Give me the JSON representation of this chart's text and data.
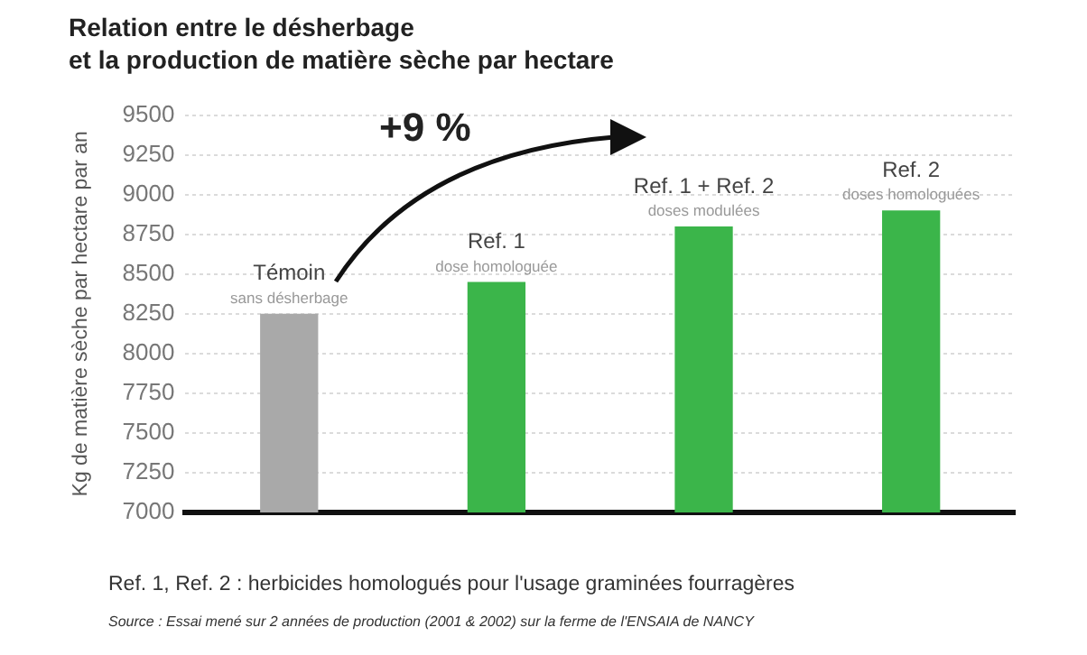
{
  "chart_data": {
    "type": "bar",
    "title": "Relation entre le désherbage\net la production de matière sèche par hectare",
    "ylabel": "Kg de matière sèche par hectare par an",
    "categories": [
      "Témoin",
      "Ref. 1",
      "Ref. 1 + Ref. 2",
      "Ref. 2"
    ],
    "values": [
      8250,
      8450,
      8800,
      8900
    ],
    "colors": [
      "#a9a9a9",
      "#3bb54a",
      "#3bb54a",
      "#3bb54a"
    ],
    "ylim": [
      7000,
      9500
    ],
    "yticks": [
      7000,
      7250,
      7500,
      7750,
      8000,
      8250,
      8500,
      8750,
      9000,
      9250,
      9500
    ],
    "grid": "y",
    "tick_labels": "y",
    "annotations": [
      {
        "text": "sans désherbage",
        "x": "Témoin",
        "y": 8250
      },
      {
        "text": "dose homologuée",
        "x": "Ref. 1",
        "y": 8450
      },
      {
        "text": "doses modulées",
        "x": "Ref. 1 + Ref. 2",
        "y": 8800
      },
      {
        "text": "doses homologuées",
        "x": "Ref. 2",
        "y": 8900
      },
      "+9 %",
      "Ref. 1, Ref. 2 : herbicides homologués pour l'usage graminées fourragères",
      "Source : Essai mené sur 2 années de production (2001 & 2002) sur la ferme de l'ENSAIA de NANCY"
    ]
  }
}
